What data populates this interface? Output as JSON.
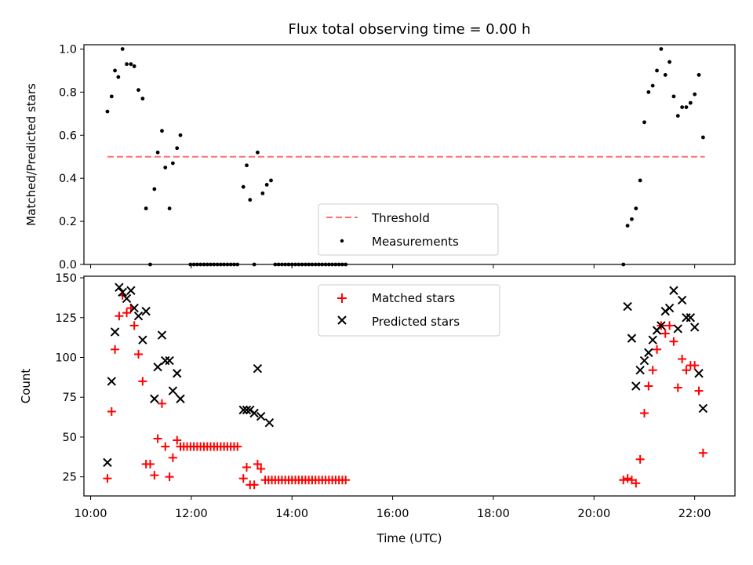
{
  "figure": {
    "title": "Flux total observing time = 0.00 h",
    "xlabel": "Time (UTC)",
    "x_ticks": [
      "10:00",
      "12:00",
      "14:00",
      "16:00",
      "18:00",
      "20:00",
      "22:00"
    ]
  },
  "colors": {
    "threshold": "#ff6f6f",
    "measurements": "#000000",
    "matched": "#ff0000",
    "predicted": "#000000"
  },
  "chart_data": [
    {
      "type": "scatter",
      "ylabel": "Matched/Predicted stars",
      "xlim": [
        "09:52",
        "22:48"
      ],
      "ylim": [
        0,
        1.02
      ],
      "y_ticks": [
        "0.0",
        "0.2",
        "0.4",
        "0.6",
        "0.8",
        "1.0"
      ],
      "legend_position": "bottom-center",
      "threshold": {
        "name": "Threshold",
        "value": 0.5,
        "x_range": [
          "10:20",
          "22:12"
        ],
        "style": "dashed"
      },
      "series": [
        {
          "name": "Measurements",
          "points": [
            [
              "10:20",
              0.71
            ],
            [
              "10:25",
              0.78
            ],
            [
              "10:29",
              0.9
            ],
            [
              "10:33",
              0.87
            ],
            [
              "10:38",
              1.0
            ],
            [
              "10:43",
              0.93
            ],
            [
              "10:48",
              0.93
            ],
            [
              "10:52",
              0.92
            ],
            [
              "10:57",
              0.81
            ],
            [
              "11:02",
              0.77
            ],
            [
              "11:06",
              0.26
            ],
            [
              "11:11",
              0.0
            ],
            [
              "11:16",
              0.35
            ],
            [
              "11:20",
              0.52
            ],
            [
              "11:25",
              0.62
            ],
            [
              "11:29",
              0.45
            ],
            [
              "11:34",
              0.26
            ],
            [
              "11:38",
              0.47
            ],
            [
              "11:43",
              0.54
            ],
            [
              "11:47",
              0.6
            ],
            [
              "11:59",
              0
            ],
            [
              "12:03",
              0
            ],
            [
              "12:07",
              0
            ],
            [
              "12:11",
              0
            ],
            [
              "12:15",
              0
            ],
            [
              "12:19",
              0
            ],
            [
              "12:23",
              0
            ],
            [
              "12:27",
              0
            ],
            [
              "12:31",
              0
            ],
            [
              "12:35",
              0
            ],
            [
              "12:39",
              0
            ],
            [
              "12:43",
              0
            ],
            [
              "12:47",
              0
            ],
            [
              "12:51",
              0
            ],
            [
              "12:55",
              0
            ],
            [
              "13:02",
              0.36
            ],
            [
              "13:06",
              0.46
            ],
            [
              "13:10",
              0.3
            ],
            [
              "13:15",
              0.0
            ],
            [
              "13:19",
              0.52
            ],
            [
              "13:25",
              0.33
            ],
            [
              "13:30",
              0.37
            ],
            [
              "13:35",
              0.39
            ],
            [
              "13:40",
              0
            ],
            [
              "13:44",
              0
            ],
            [
              "13:48",
              0
            ],
            [
              "13:52",
              0
            ],
            [
              "13:56",
              0
            ],
            [
              "14:00",
              0
            ],
            [
              "14:04",
              0
            ],
            [
              "14:08",
              0
            ],
            [
              "14:12",
              0
            ],
            [
              "14:16",
              0
            ],
            [
              "14:20",
              0
            ],
            [
              "14:24",
              0
            ],
            [
              "14:28",
              0
            ],
            [
              "14:32",
              0
            ],
            [
              "14:36",
              0
            ],
            [
              "14:40",
              0
            ],
            [
              "14:44",
              0
            ],
            [
              "14:48",
              0
            ],
            [
              "14:52",
              0
            ],
            [
              "14:56",
              0
            ],
            [
              "15:00",
              0
            ],
            [
              "15:04",
              0
            ],
            [
              "20:35",
              0.0
            ],
            [
              "20:40",
              0.18
            ],
            [
              "20:45",
              0.21
            ],
            [
              "20:50",
              0.26
            ],
            [
              "20:55",
              0.39
            ],
            [
              "21:00",
              0.66
            ],
            [
              "21:05",
              0.8
            ],
            [
              "21:10",
              0.83
            ],
            [
              "21:15",
              0.9
            ],
            [
              "21:20",
              1.0
            ],
            [
              "21:25",
              0.88
            ],
            [
              "21:30",
              0.94
            ],
            [
              "21:35",
              0.78
            ],
            [
              "21:40",
              0.69
            ],
            [
              "21:45",
              0.73
            ],
            [
              "21:50",
              0.73
            ],
            [
              "21:55",
              0.75
            ],
            [
              "22:00",
              0.79
            ],
            [
              "22:05",
              0.88
            ],
            [
              "22:10",
              0.59
            ]
          ]
        }
      ]
    },
    {
      "type": "scatter",
      "ylabel": "Count",
      "xlim": [
        "09:52",
        "22:48"
      ],
      "ylim": [
        13,
        151
      ],
      "y_ticks": [
        "25",
        "50",
        "75",
        "100",
        "125",
        "150"
      ],
      "legend_position": "top-center",
      "series": [
        {
          "name": "Matched stars",
          "marker": "plus",
          "points": [
            [
              "10:20",
              24
            ],
            [
              "10:25",
              66
            ],
            [
              "10:29",
              105
            ],
            [
              "10:34",
              126
            ],
            [
              "10:38",
              139
            ],
            [
              "10:43",
              128
            ],
            [
              "10:48",
              131
            ],
            [
              "10:52",
              120
            ],
            [
              "10:57",
              102
            ],
            [
              "11:02",
              85
            ],
            [
              "11:06",
              33
            ],
            [
              "11:11",
              33
            ],
            [
              "11:16",
              26
            ],
            [
              "11:20",
              49
            ],
            [
              "11:25",
              71
            ],
            [
              "11:29",
              44
            ],
            [
              "11:34",
              25
            ],
            [
              "11:38",
              37
            ],
            [
              "11:43",
              48
            ],
            [
              "11:47",
              44
            ],
            [
              "11:51",
              44
            ],
            [
              "11:55",
              44
            ],
            [
              "11:59",
              44
            ],
            [
              "12:03",
              44
            ],
            [
              "12:07",
              44
            ],
            [
              "12:11",
              44
            ],
            [
              "12:15",
              44
            ],
            [
              "12:19",
              44
            ],
            [
              "12:23",
              44
            ],
            [
              "12:27",
              44
            ],
            [
              "12:31",
              44
            ],
            [
              "12:35",
              44
            ],
            [
              "12:39",
              44
            ],
            [
              "12:43",
              44
            ],
            [
              "12:47",
              44
            ],
            [
              "12:51",
              44
            ],
            [
              "12:55",
              44
            ],
            [
              "13:02",
              24
            ],
            [
              "13:06",
              31
            ],
            [
              "13:10",
              20
            ],
            [
              "13:15",
              20
            ],
            [
              "13:19",
              33
            ],
            [
              "13:23",
              30
            ],
            [
              "13:28",
              23
            ],
            [
              "13:32",
              23
            ],
            [
              "13:36",
              23
            ],
            [
              "13:40",
              23
            ],
            [
              "13:44",
              23
            ],
            [
              "13:48",
              23
            ],
            [
              "13:52",
              23
            ],
            [
              "13:56",
              23
            ],
            [
              "14:00",
              23
            ],
            [
              "14:04",
              23
            ],
            [
              "14:08",
              23
            ],
            [
              "14:12",
              23
            ],
            [
              "14:16",
              23
            ],
            [
              "14:20",
              23
            ],
            [
              "14:24",
              23
            ],
            [
              "14:28",
              23
            ],
            [
              "14:32",
              23
            ],
            [
              "14:36",
              23
            ],
            [
              "14:40",
              23
            ],
            [
              "14:44",
              23
            ],
            [
              "14:48",
              23
            ],
            [
              "14:52",
              23
            ],
            [
              "14:56",
              23
            ],
            [
              "15:00",
              23
            ],
            [
              "15:04",
              23
            ],
            [
              "20:35",
              23
            ],
            [
              "20:40",
              24
            ],
            [
              "20:45",
              23
            ],
            [
              "20:50",
              21
            ],
            [
              "20:55",
              36
            ],
            [
              "21:00",
              65
            ],
            [
              "21:05",
              82
            ],
            [
              "21:10",
              92
            ],
            [
              "21:15",
              105
            ],
            [
              "21:20",
              120
            ],
            [
              "21:25",
              115
            ],
            [
              "21:30",
              120
            ],
            [
              "21:35",
              110
            ],
            [
              "21:40",
              81
            ],
            [
              "21:45",
              99
            ],
            [
              "21:50",
              92
            ],
            [
              "21:55",
              95
            ],
            [
              "22:00",
              95
            ],
            [
              "22:05",
              79
            ],
            [
              "22:10",
              40
            ]
          ]
        },
        {
          "name": "Predicted stars",
          "marker": "x",
          "points": [
            [
              "10:20",
              34
            ],
            [
              "10:25",
              85
            ],
            [
              "10:29",
              116
            ],
            [
              "10:34",
              144
            ],
            [
              "10:38",
              141
            ],
            [
              "10:43",
              137
            ],
            [
              "10:48",
              142
            ],
            [
              "10:52",
              131
            ],
            [
              "10:57",
              126
            ],
            [
              "11:02",
              111
            ],
            [
              "11:06",
              129
            ],
            [
              "11:16",
              74
            ],
            [
              "11:20",
              94
            ],
            [
              "11:25",
              114
            ],
            [
              "11:29",
              98
            ],
            [
              "11:34",
              98
            ],
            [
              "11:38",
              79
            ],
            [
              "11:43",
              90
            ],
            [
              "11:47",
              74
            ],
            [
              "13:02",
              67
            ],
            [
              "13:06",
              67
            ],
            [
              "13:10",
              67
            ],
            [
              "13:15",
              65
            ],
            [
              "13:19",
              93
            ],
            [
              "13:23",
              63
            ],
            [
              "13:33",
              59
            ],
            [
              "20:40",
              132
            ],
            [
              "20:45",
              112
            ],
            [
              "20:50",
              82
            ],
            [
              "20:55",
              92
            ],
            [
              "21:00",
              98
            ],
            [
              "21:05",
              103
            ],
            [
              "21:10",
              111
            ],
            [
              "21:15",
              117
            ],
            [
              "21:20",
              120
            ],
            [
              "21:25",
              129
            ],
            [
              "21:30",
              131
            ],
            [
              "21:35",
              142
            ],
            [
              "21:40",
              118
            ],
            [
              "21:45",
              136
            ],
            [
              "21:50",
              125
            ],
            [
              "21:55",
              125
            ],
            [
              "22:00",
              119
            ],
            [
              "22:05",
              90
            ],
            [
              "22:10",
              68
            ]
          ]
        }
      ]
    }
  ]
}
